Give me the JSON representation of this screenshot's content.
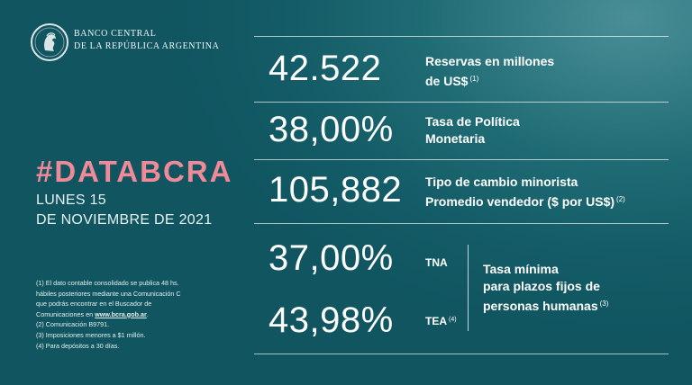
{
  "logo": {
    "line1": "BANCO CENTRAL",
    "line2": "DE LA REPÚBLICA ARGENTINA"
  },
  "headline": {
    "hashtag": "#DATABCRA",
    "date_line1": "LUNES 15",
    "date_line2": "DE NOVIEMBRE DE 2021"
  },
  "indicators": [
    {
      "value": "42.522",
      "label_line1": "Reservas en millones",
      "label_line2": "de US$",
      "note": "(1)"
    },
    {
      "value": "38,00%",
      "label_line1": "Tasa de Política",
      "label_line2": "Monetaria",
      "note": ""
    },
    {
      "value": "105,882",
      "label_line1": "Tipo de cambio minorista",
      "label_line2": "Promedio vendedor  ($ por US$)",
      "note": "(2)"
    }
  ],
  "deposits": {
    "tna_value": "37,00%",
    "tna_label": "TNA",
    "tea_value": "43,98%",
    "tea_label": "TEA",
    "tea_note": "(4)",
    "desc_line1": "Tasa mínima",
    "desc_line2": "para plazos fijos de",
    "desc_line3": "personas humanas",
    "desc_note": "(3)"
  },
  "footnotes": {
    "n1_line1": "(1) El dato contable consolidado se publica 48 hs.",
    "n1_line2": "hábiles posteriores mediante una Comunicación C",
    "n1_line3": "que podrás encontrar en el Buscador de",
    "n1_line4_prefix": "Comunicaciones en ",
    "n1_link": "www.bcra.gob.ar",
    "n1_line4_suffix": ".",
    "n2": "(2) Comunicación B9791.",
    "n3": "(3) Imposiciones menores a $1 millón.",
    "n4": "(4) Para depósitos a 30 días."
  },
  "colors": {
    "background": "#135b66",
    "accent_pink": "#f08a98",
    "text": "#ffffff"
  }
}
